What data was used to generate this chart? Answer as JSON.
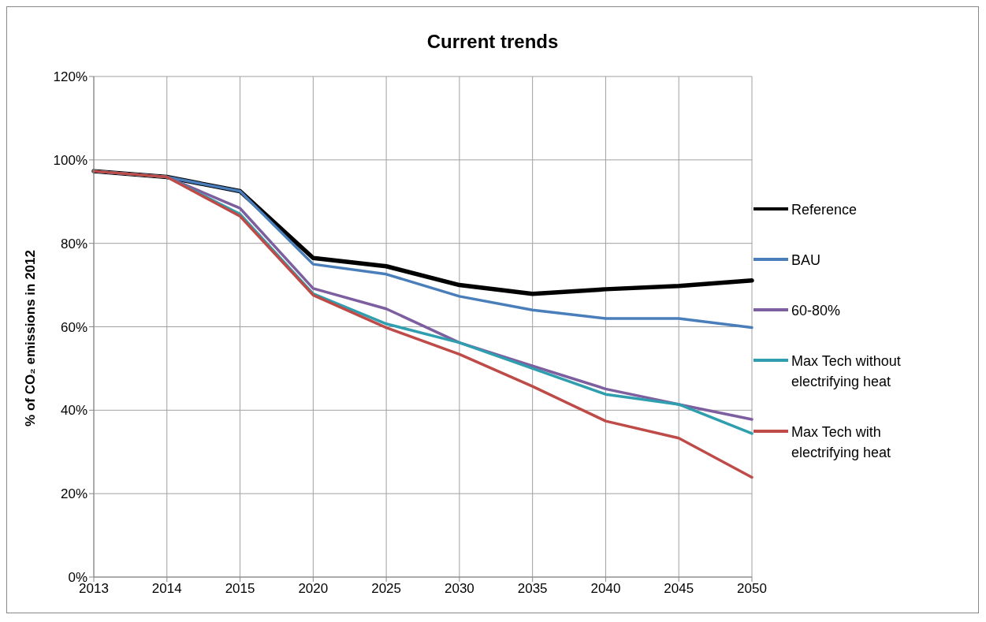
{
  "chart_data": {
    "type": "line",
    "title": "Current trends",
    "ylabel": "% of CO₂ emissions in 2012",
    "categories": [
      "2013",
      "2014",
      "2015",
      "2020",
      "2025",
      "2030",
      "2035",
      "2040",
      "2045",
      "2050"
    ],
    "series": [
      {
        "name": "Reference",
        "color": "#000000",
        "values": [
          97.3,
          95.9,
          92.5,
          76.5,
          74.5,
          70,
          67.9,
          69,
          69.8,
          71.1
        ]
      },
      {
        "name": "BAU",
        "color": "#4a7ebb",
        "values": [
          97.3,
          95.9,
          92.5,
          75,
          72.6,
          67.3,
          64,
          62,
          62,
          59.8
        ]
      },
      {
        "name": "60-80%",
        "color": "#7d5fa0",
        "values": [
          97.3,
          95.9,
          88.4,
          69.2,
          64.3,
          56.2,
          50.6,
          45.1,
          41.4,
          37.8
        ]
      },
      {
        "name": "Max Tech without electrifying heat",
        "color": "#2f9fb0",
        "values": [
          97.3,
          95.9,
          87,
          67.9,
          60.7,
          56.2,
          50,
          43.8,
          41.4,
          34.4
        ]
      },
      {
        "name": "Max Tech with electrifying heat",
        "color": "#be4b48",
        "values": [
          97.3,
          95.9,
          86.5,
          67.6,
          59.8,
          53.4,
          45.7,
          37.4,
          33.3,
          23.9
        ]
      }
    ],
    "ylim": [
      0,
      120
    ],
    "yticks": [
      {
        "value": 0,
        "label": "0%"
      },
      {
        "value": 20,
        "label": "20%"
      },
      {
        "value": 40,
        "label": "40%"
      },
      {
        "value": 60,
        "label": "60%"
      },
      {
        "value": 80,
        "label": "80%"
      },
      {
        "value": 100,
        "label": "100%"
      },
      {
        "value": 120,
        "label": "120%"
      }
    ],
    "grid": true,
    "legend": "right",
    "marker": "none",
    "line_style": "solid"
  }
}
